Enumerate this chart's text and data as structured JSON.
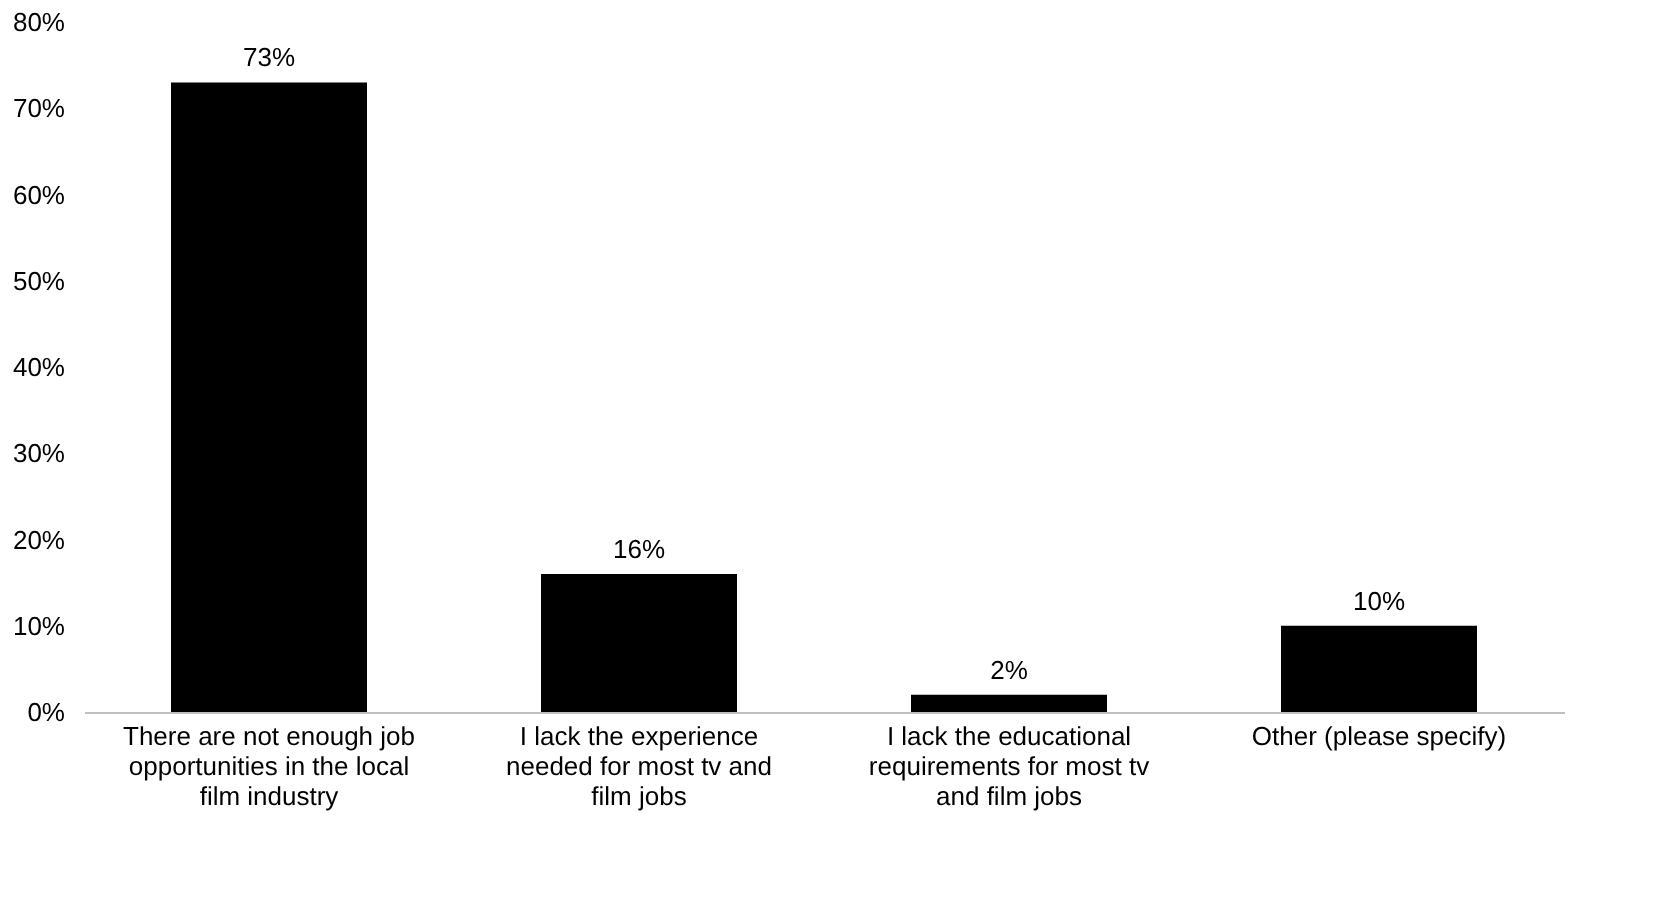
{
  "chart_data": {
    "type": "bar",
    "categories": [
      "There are not enough job opportunities in the local film industry",
      "I lack the experience needed for most tv and film jobs",
      "I lack the educational requirements for most tv and film jobs",
      "Other (please specify)"
    ],
    "values": [
      73,
      16,
      2,
      10
    ],
    "value_labels": [
      "73%",
      "16%",
      "2%",
      "10%"
    ],
    "color": "#000000",
    "ylim": [
      0,
      80
    ],
    "yticks": [
      {
        "value": 0,
        "label": "0%"
      },
      {
        "value": 10,
        "label": "10%"
      },
      {
        "value": 20,
        "label": "20%"
      },
      {
        "value": 30,
        "label": "30%"
      },
      {
        "value": 40,
        "label": "40%"
      },
      {
        "value": 50,
        "label": "50%"
      },
      {
        "value": 60,
        "label": "60%"
      },
      {
        "value": 70,
        "label": "70%"
      },
      {
        "value": 80,
        "label": "80%"
      }
    ],
    "grid": false
  }
}
